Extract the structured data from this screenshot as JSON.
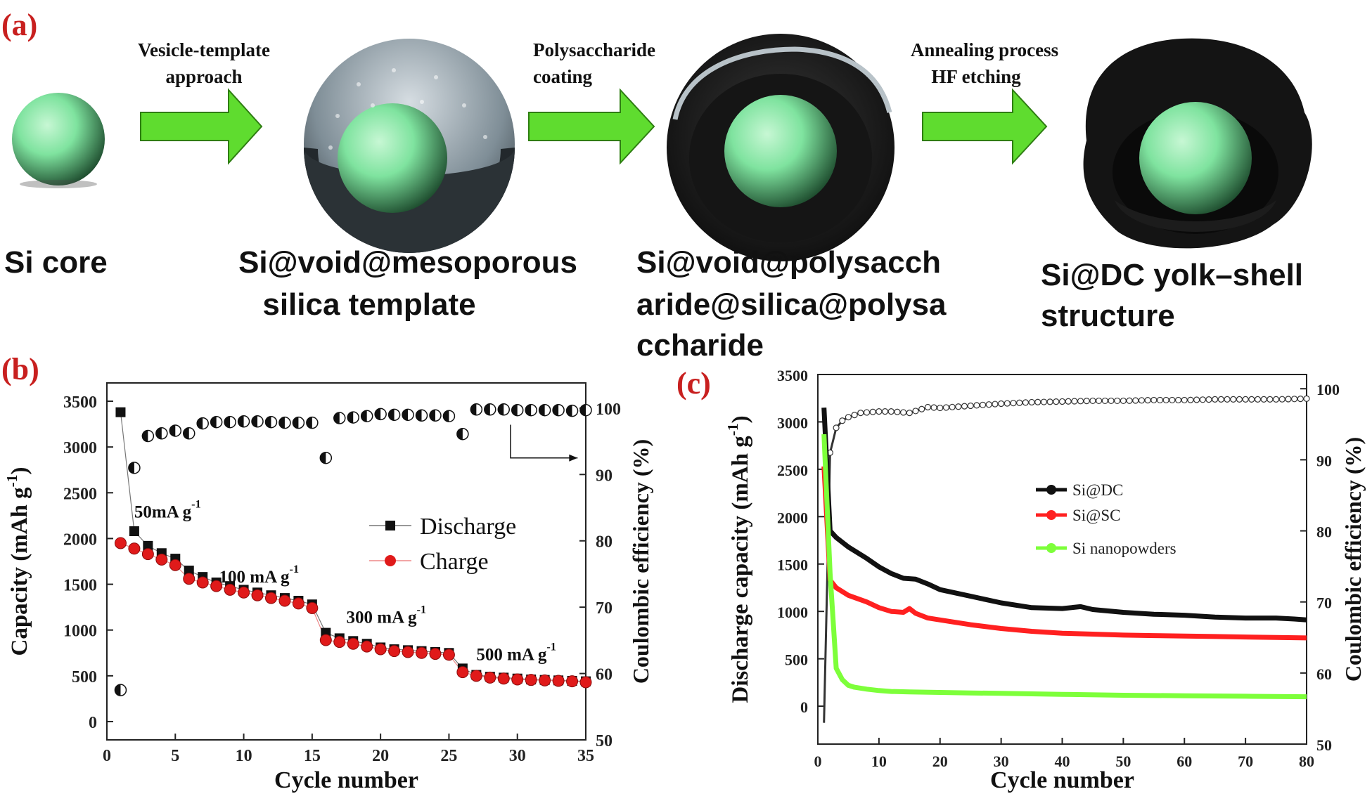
{
  "panel_labels": {
    "a": "(a)",
    "b": "(b)",
    "c": "(c)"
  },
  "colors": {
    "panel_label": "#c8201f",
    "arrow": "#5fdc2f",
    "core": "#7fe39f",
    "shell_dark": "#1c1c1c",
    "silica_inner": "#7f8e97",
    "discharge": "#111111",
    "charge": "#e01a1a",
    "si_dc": "#111111",
    "si_sc": "#ff2020",
    "si_nano": "#7dff3a"
  },
  "scheme": {
    "arrows": [
      {
        "line1": "Vesicle-template",
        "line2": "approach"
      },
      {
        "line1": "Polysaccharide",
        "line2": "coating"
      },
      {
        "line1": "Annealing process",
        "line2": "HF etching"
      }
    ],
    "stages": [
      {
        "line1": "Si core",
        "line2": "",
        "line3": ""
      },
      {
        "line1": "Si@void@mesoporous",
        "line2": "silica template",
        "line3": ""
      },
      {
        "line1": "Si@void@polysacch",
        "line2": "aride@silica@polysa",
        "line3": "ccharide"
      },
      {
        "line1": "Si@DC yolk–shell",
        "line2": "structure",
        "line3": ""
      }
    ]
  },
  "chart_data": [
    {
      "panel": "(b)",
      "type": "scatter",
      "xlabel": "Cycle number",
      "ylabel": "Capacity (mAh g",
      "ylabel_sup": "-1",
      "ylabel_close": ")",
      "y2label": "Coulombic efficiency (%)",
      "xlim": [
        0,
        35
      ],
      "ylim": [
        -200,
        3700
      ],
      "y2lim": [
        50,
        103.8
      ],
      "xticks": [
        0,
        5,
        10,
        15,
        20,
        25,
        30,
        35
      ],
      "yticks": [
        0,
        500,
        1000,
        1500,
        2000,
        2500,
        3000,
        3500
      ],
      "y2ticks": [
        50,
        60,
        70,
        80,
        90,
        100
      ],
      "legend": {
        "position": "center-right",
        "discharge": "Discharge",
        "charge": "Charge"
      },
      "annotations": [
        {
          "text": "50mA g",
          "sup": "-1",
          "x": 2,
          "y": 2230
        },
        {
          "text": "100 mA g",
          "sup": "-1",
          "x": 8.2,
          "y": 1520
        },
        {
          "text": "300 mA g",
          "sup": "-1",
          "x": 17.5,
          "y": 1080
        },
        {
          "text": "500 mA g",
          "sup": "-1",
          "x": 27,
          "y": 670
        }
      ],
      "arrow_points_to": "right",
      "x": [
        1,
        2,
        3,
        4,
        5,
        6,
        7,
        8,
        9,
        10,
        11,
        12,
        13,
        14,
        15,
        16,
        17,
        18,
        19,
        20,
        21,
        22,
        23,
        24,
        25,
        26,
        27,
        28,
        29,
        30,
        31,
        32,
        33,
        34,
        35
      ],
      "series": [
        {
          "name": "Discharge",
          "values": [
            3380,
            2080,
            1920,
            1840,
            1780,
            1650,
            1580,
            1520,
            1480,
            1440,
            1410,
            1380,
            1350,
            1320,
            1280,
            970,
            910,
            880,
            850,
            810,
            790,
            780,
            770,
            760,
            750,
            580,
            510,
            490,
            480,
            470,
            460,
            455,
            450,
            445,
            440
          ]
        },
        {
          "name": "Charge",
          "values": [
            1950,
            1890,
            1830,
            1770,
            1710,
            1560,
            1520,
            1480,
            1440,
            1410,
            1380,
            1350,
            1320,
            1290,
            1240,
            890,
            870,
            850,
            820,
            790,
            770,
            760,
            750,
            740,
            730,
            540,
            500,
            480,
            470,
            460,
            455,
            450,
            445,
            440,
            430
          ]
        },
        {
          "name": "Coulombic efficiency",
          "values": [
            57.5,
            91,
            95.8,
            96.2,
            96.6,
            96.2,
            97.7,
            97.9,
            97.9,
            98,
            98,
            97.9,
            97.8,
            97.8,
            97.8,
            92.5,
            98.5,
            98.6,
            98.8,
            99.1,
            99,
            99,
            98.9,
            98.9,
            98.8,
            96.1,
            99.8,
            99.8,
            99.8,
            99.7,
            99.7,
            99.7,
            99.7,
            99.6,
            99.7
          ]
        }
      ]
    },
    {
      "panel": "(c)",
      "type": "line",
      "xlabel": "Cycle number",
      "ylabel": "Discharge capacity (mAh g",
      "ylabel_sup": "-1",
      "ylabel_close": ")",
      "y2label": "Coulombic efficiency (%)",
      "xlim": [
        0,
        80
      ],
      "ylim": [
        -400,
        3500
      ],
      "y2lim": [
        50,
        102
      ],
      "xticks": [
        0,
        10,
        20,
        30,
        40,
        50,
        60,
        70,
        80
      ],
      "yticks": [
        0,
        500,
        1000,
        1500,
        2000,
        2500,
        3000,
        3500
      ],
      "y2ticks": [
        50,
        60,
        70,
        80,
        90,
        100
      ],
      "legend": {
        "position": "center-right",
        "items": [
          "Si@DC",
          "Si@SC",
          "Si nanopowders"
        ]
      },
      "series": [
        {
          "name": "Si@DC",
          "x": [
            1,
            2,
            3,
            5,
            8,
            10,
            12,
            14,
            16,
            18,
            20,
            25,
            30,
            35,
            40,
            43,
            45,
            50,
            55,
            60,
            65,
            70,
            75,
            78,
            80
          ],
          "values": [
            3150,
            1850,
            1780,
            1680,
            1560,
            1470,
            1400,
            1350,
            1340,
            1290,
            1230,
            1160,
            1090,
            1040,
            1030,
            1050,
            1020,
            990,
            970,
            960,
            940,
            930,
            930,
            920,
            910
          ]
        },
        {
          "name": "Si@SC",
          "x": [
            1,
            2,
            3,
            5,
            8,
            10,
            12,
            14,
            15,
            16,
            18,
            20,
            25,
            30,
            35,
            40,
            45,
            50,
            55,
            60,
            65,
            70,
            75,
            80
          ],
          "values": [
            2530,
            1330,
            1250,
            1170,
            1100,
            1040,
            1000,
            990,
            1030,
            980,
            930,
            910,
            860,
            820,
            790,
            770,
            760,
            750,
            745,
            740,
            735,
            730,
            725,
            720
          ]
        },
        {
          "name": "Si nanopowders",
          "x": [
            1,
            2,
            3,
            4,
            5,
            6,
            8,
            10,
            12,
            15,
            20,
            25,
            30,
            40,
            50,
            60,
            70,
            80
          ],
          "values": [
            2870,
            1400,
            400,
            280,
            220,
            200,
            180,
            165,
            155,
            150,
            145,
            140,
            135,
            125,
            115,
            110,
            105,
            100
          ]
        },
        {
          "name": "Coulombic efficiency",
          "x": [
            1,
            2,
            3,
            4,
            5,
            7,
            10,
            12,
            15,
            18,
            20,
            25,
            30,
            35,
            40,
            45,
            50,
            55,
            60,
            65,
            70,
            75,
            80
          ],
          "values": [
            53,
            91,
            94.5,
            95.5,
            96,
            96.6,
            96.8,
            96.8,
            96.6,
            97.4,
            97.3,
            97.6,
            97.9,
            98.1,
            98.2,
            98.3,
            98.3,
            98.4,
            98.4,
            98.5,
            98.5,
            98.5,
            98.6
          ]
        }
      ]
    }
  ]
}
